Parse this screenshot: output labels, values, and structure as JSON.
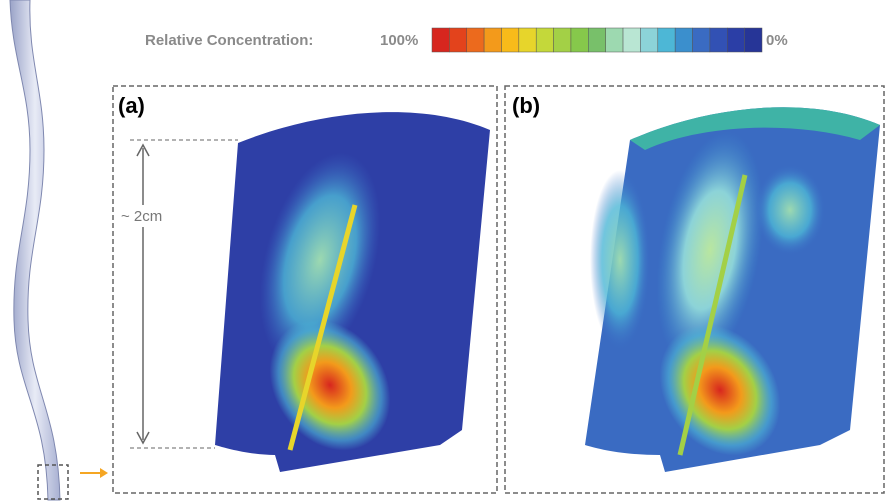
{
  "header": {
    "label": "Relative Concentration:",
    "max": "100%",
    "min": "0%"
  },
  "panels": [
    {
      "label": "(a)",
      "dimension": "~ 2cm"
    },
    {
      "label": "(b)"
    }
  ]
}
